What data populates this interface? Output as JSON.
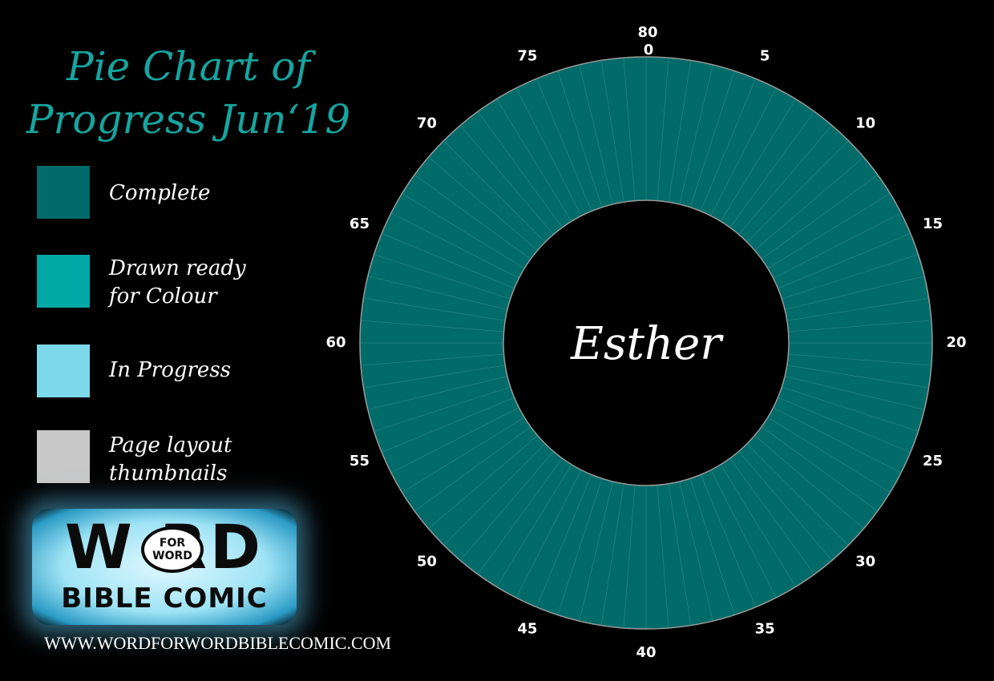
{
  "title": {
    "line1": "Pie Chart of",
    "line2": "Progress Jun‘19"
  },
  "colors": {
    "title": "#16a5a0",
    "complete": "#006b69",
    "drawn_ready": "#00a8a6",
    "in_progress": "#7dd8ea",
    "thumbnails": "#c8c8c8",
    "background": "#000000"
  },
  "legend": [
    {
      "label_line1": "Complete",
      "label_line2": "",
      "color_key": "complete"
    },
    {
      "label_line1": "Drawn ready",
      "label_line2": "for Colour",
      "color_key": "drawn_ready"
    },
    {
      "label_line1": "In Progress",
      "label_line2": "",
      "color_key": "in_progress"
    },
    {
      "label_line1": "Page layout",
      "label_line2": "thumbnails",
      "color_key": "thumbnails"
    }
  ],
  "logo": {
    "word": "W   RD",
    "bubble_top": "FOR",
    "bubble_bottom": "WORD",
    "sub": "BIBLE COMIC"
  },
  "url": "WWW.WORDFORWORDBIBLECOMIC.COM",
  "chart_data": {
    "type": "pie",
    "center_label": "Esther",
    "total_pages": 80,
    "tick_labels": [
      "0",
      "5",
      "10",
      "15",
      "20",
      "25",
      "30",
      "35",
      "40",
      "45",
      "50",
      "55",
      "60",
      "65",
      "70",
      "75",
      "80"
    ],
    "tick_values": [
      0,
      5,
      10,
      15,
      20,
      25,
      30,
      35,
      40,
      45,
      50,
      55,
      60,
      65,
      70,
      75,
      80
    ],
    "segments": [
      {
        "start": 0,
        "end": 80,
        "status": "complete"
      }
    ]
  }
}
